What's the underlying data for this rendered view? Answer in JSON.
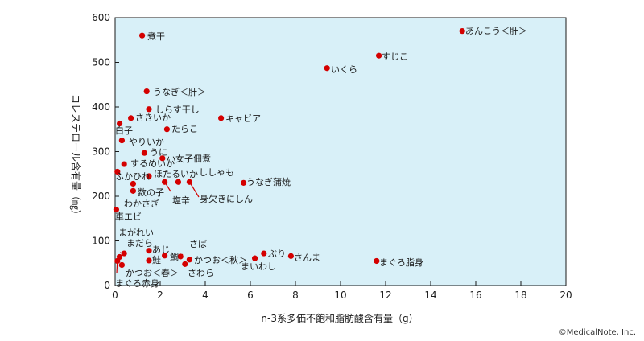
{
  "chart_data": {
    "type": "scatter",
    "title": "",
    "xlabel": "n-3系多価不飽和脂肪酸含有量（g）",
    "ylabel": "コレステロール含有量（㎎）",
    "xlim": [
      0,
      20
    ],
    "ylim": [
      0,
      600
    ],
    "xticks": [
      0,
      2,
      4,
      6,
      8,
      10,
      12,
      14,
      16,
      18,
      20
    ],
    "yticks": [
      0,
      100,
      200,
      300,
      400,
      500,
      600
    ],
    "grid": false,
    "plot_background": "#d8f0f8",
    "marker_color": "#d40000",
    "points": [
      {
        "label": "煮干",
        "x": 1.2,
        "y": 560
      },
      {
        "label": "あんこう＜肝＞",
        "x": 15.4,
        "y": 570
      },
      {
        "label": "すじこ",
        "x": 11.7,
        "y": 515
      },
      {
        "label": "いくら",
        "x": 9.4,
        "y": 487
      },
      {
        "label": "うなぎ＜肝＞",
        "x": 1.4,
        "y": 435
      },
      {
        "label": "しらす干し",
        "x": 1.5,
        "y": 395
      },
      {
        "label": "さきいか",
        "x": 0.7,
        "y": 375
      },
      {
        "label": "キャビア",
        "x": 4.7,
        "y": 375
      },
      {
        "label": "白子",
        "x": 0.2,
        "y": 363
      },
      {
        "label": "たらこ",
        "x": 2.3,
        "y": 350
      },
      {
        "label": "やりいか",
        "x": 0.3,
        "y": 325
      },
      {
        "label": "うに",
        "x": 1.3,
        "y": 297
      },
      {
        "label": "小女子佃煮",
        "x": 2.1,
        "y": 285
      },
      {
        "label": "するめいか",
        "x": 0.4,
        "y": 272
      },
      {
        "label": "ふかひれ",
        "x": 0.1,
        "y": 255
      },
      {
        "label": "ほたるいか",
        "x": 1.5,
        "y": 245
      },
      {
        "label": "ししゃも",
        "x": 2.8,
        "y": 232
      },
      {
        "label": "塩辛",
        "x": 2.2,
        "y": 232
      },
      {
        "label": "身欠きにしん",
        "x": 3.3,
        "y": 232
      },
      {
        "label": "うなぎ蒲焼",
        "x": 5.7,
        "y": 230
      },
      {
        "label": "数の子",
        "x": 0.8,
        "y": 228
      },
      {
        "label": "わかさぎ",
        "x": 0.8,
        "y": 212
      },
      {
        "label": "車エビ",
        "x": 0.05,
        "y": 170
      },
      {
        "label": "あじ",
        "x": 1.5,
        "y": 78
      },
      {
        "label": "鯛",
        "x": 2.2,
        "y": 67
      },
      {
        "label": "さば",
        "x": 2.9,
        "y": 65
      },
      {
        "label": "ぶり",
        "x": 6.6,
        "y": 72
      },
      {
        "label": "さんま",
        "x": 7.8,
        "y": 66
      },
      {
        "label": "かつお＜秋＞",
        "x": 3.3,
        "y": 58
      },
      {
        "label": "まいわし",
        "x": 6.2,
        "y": 61
      },
      {
        "label": "まぐろ脂身",
        "x": 11.6,
        "y": 55
      },
      {
        "label": "鮭",
        "x": 1.5,
        "y": 56
      },
      {
        "label": "さわら",
        "x": 3.1,
        "y": 48
      },
      {
        "label": "まだら",
        "x": 0.4,
        "y": 72
      },
      {
        "label": "まがれい",
        "x": 0.2,
        "y": 64
      },
      {
        "label": "かつお＜春＞",
        "x": 0.3,
        "y": 46
      },
      {
        "label": "まぐろ赤身",
        "x": 0.1,
        "y": 55
      }
    ]
  },
  "credit": "©MedicalNote, Inc."
}
